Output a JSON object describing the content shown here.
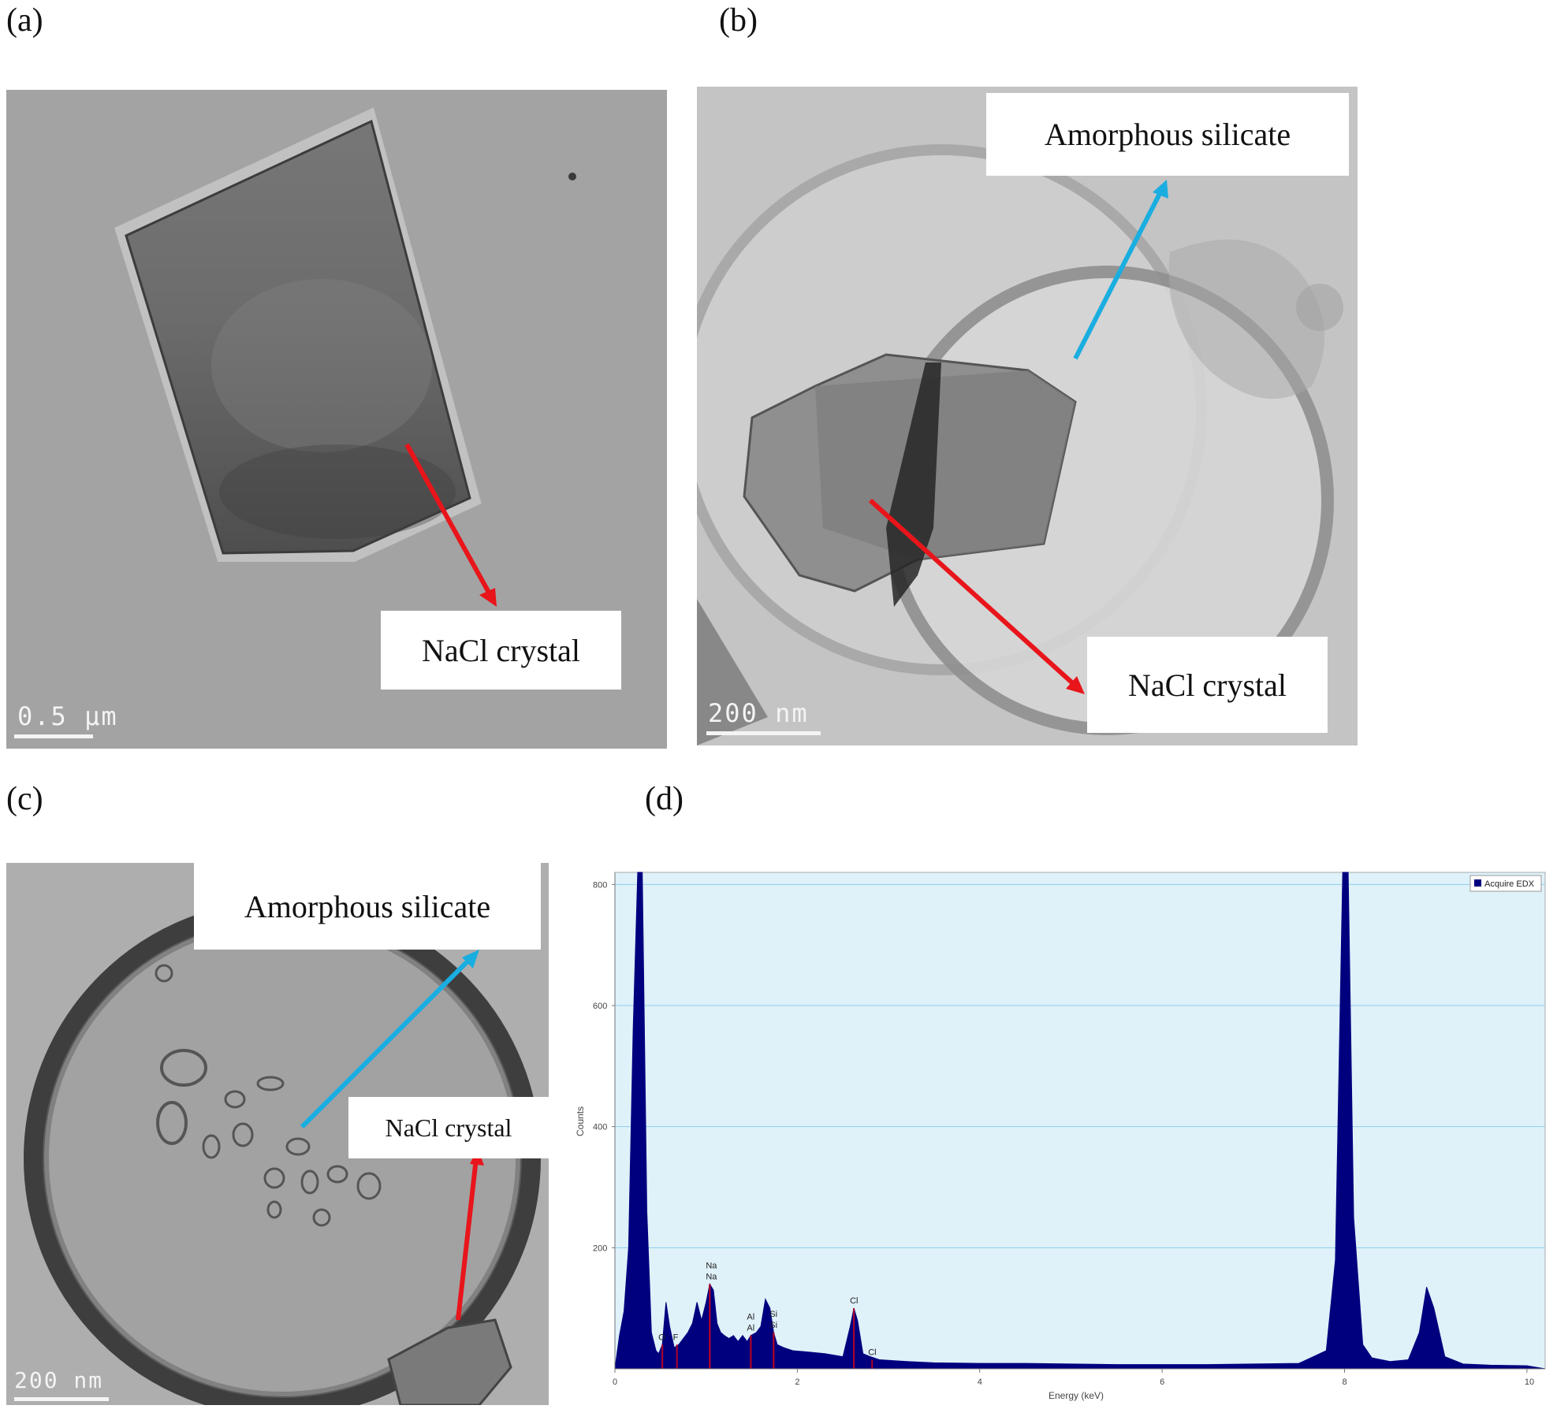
{
  "panels": {
    "a": {
      "letter": "(a)",
      "labels": [
        "NaCl crystal"
      ],
      "scale_bar": "0.5 μm"
    },
    "b": {
      "letter": "(b)",
      "labels": [
        "Amorphous silicate",
        "NaCl crystal"
      ],
      "scale_bar": "200 nm"
    },
    "c": {
      "letter": "(c)",
      "labels": [
        "Amorphous silicate",
        "NaCl crystal"
      ],
      "scale_bar": "200 nm"
    },
    "d": {
      "letter": "(d)"
    }
  },
  "colors": {
    "background": "#ffffff",
    "plot_area": "#dff1f9",
    "spectrum": "#00007f",
    "peak_marker": "#b00028",
    "arrow_red": "#e8151b",
    "arrow_blue": "#1aaee0"
  },
  "chart_data": {
    "type": "area",
    "title": "",
    "xlabel": "Energy (keV)",
    "ylabel": "Counts",
    "xlim": [
      0,
      10.2
    ],
    "ylim": [
      0,
      820
    ],
    "x_ticks": [
      0,
      2,
      4,
      6,
      8,
      10
    ],
    "y_ticks": [
      200,
      400,
      600,
      800
    ],
    "grid": true,
    "legend": "top-right",
    "series": [
      {
        "name": "Acquire EDX",
        "x": [
          0.0,
          0.05,
          0.1,
          0.15,
          0.2,
          0.25,
          0.3,
          0.35,
          0.4,
          0.45,
          0.48,
          0.52,
          0.56,
          0.6,
          0.65,
          0.7,
          0.75,
          0.8,
          0.85,
          0.9,
          0.95,
          1.0,
          1.04,
          1.08,
          1.12,
          1.16,
          1.2,
          1.25,
          1.3,
          1.35,
          1.4,
          1.45,
          1.49,
          1.55,
          1.6,
          1.65,
          1.7,
          1.74,
          1.78,
          1.85,
          1.95,
          2.1,
          2.3,
          2.5,
          2.58,
          2.62,
          2.66,
          2.72,
          2.8,
          2.9,
          3.0,
          3.2,
          3.5,
          4.0,
          4.5,
          5.0,
          5.5,
          6.0,
          6.5,
          7.0,
          7.5,
          7.8,
          7.9,
          7.98,
          8.04,
          8.1,
          8.2,
          8.3,
          8.5,
          8.7,
          8.82,
          8.9,
          8.98,
          9.1,
          9.3,
          9.6,
          10.0,
          10.2
        ],
        "values": [
          0,
          55,
          95,
          200,
          560,
          820,
          820,
          260,
          60,
          30,
          25,
          40,
          110,
          70,
          35,
          40,
          50,
          60,
          75,
          110,
          80,
          110,
          140,
          130,
          75,
          60,
          55,
          50,
          55,
          45,
          55,
          45,
          55,
          60,
          70,
          115,
          100,
          60,
          40,
          35,
          30,
          28,
          25,
          20,
          70,
          100,
          80,
          25,
          20,
          15,
          14,
          12,
          10,
          9,
          9,
          8,
          7,
          7,
          7,
          8,
          9,
          30,
          180,
          820,
          820,
          250,
          40,
          18,
          12,
          15,
          60,
          135,
          100,
          20,
          8,
          6,
          5,
          0
        ]
      }
    ],
    "peak_labels": [
      {
        "text": "O",
        "x": 0.52
      },
      {
        "text": "F",
        "x": 0.68
      },
      {
        "text": "Na",
        "x": 1.04
      },
      {
        "text": "Na",
        "x": 1.04
      },
      {
        "text": "Al",
        "x": 1.49
      },
      {
        "text": "Al",
        "x": 1.49
      },
      {
        "text": "Si",
        "x": 1.74
      },
      {
        "text": "Si",
        "x": 1.74
      },
      {
        "text": "Cl",
        "x": 2.62
      },
      {
        "text": "Cl",
        "x": 2.82
      }
    ]
  }
}
